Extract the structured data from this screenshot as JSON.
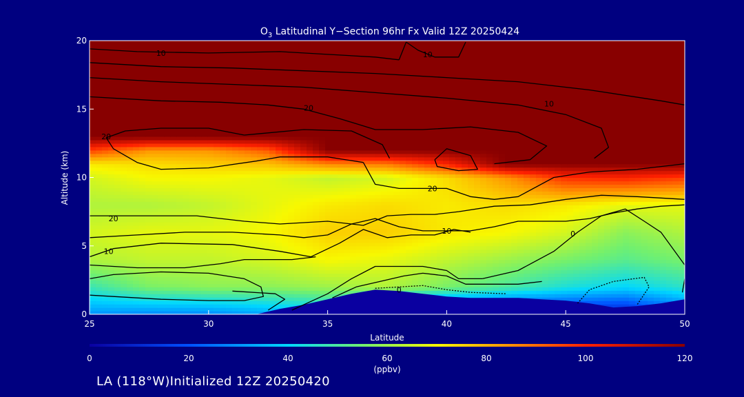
{
  "chart_data": {
    "type": "heatmap",
    "title_prefix": "O",
    "title_sub": "3",
    "title_rest": " Latitudinal Y−Section 96hr  Fx Valid 12Z 20250424",
    "xlabel": "Latitude",
    "ylabel": "Altitude (km)",
    "xlim": [
      25,
      50
    ],
    "ylim": [
      0,
      20
    ],
    "xticks": [
      25,
      30,
      35,
      40,
      45,
      50
    ],
    "yticks": [
      0,
      5,
      10,
      15,
      20
    ],
    "colorbar": {
      "label": "(ppbv)",
      "min": 0,
      "max": 120,
      "ticks": [
        0,
        20,
        40,
        60,
        80,
        100,
        120
      ],
      "stops": [
        {
          "v": 0,
          "color": "#0a00a0"
        },
        {
          "v": 20,
          "color": "#0050ff"
        },
        {
          "v": 40,
          "color": "#00d8ff"
        },
        {
          "v": 55,
          "color": "#70f070"
        },
        {
          "v": 70,
          "color": "#f8f800"
        },
        {
          "v": 85,
          "color": "#ff9000"
        },
        {
          "v": 100,
          "color": "#ff2000"
        },
        {
          "v": 120,
          "color": "#880000"
        }
      ]
    },
    "x": [
      25,
      27.5,
      30,
      32.5,
      35,
      37.5,
      40,
      42.5,
      45,
      47.5,
      50
    ],
    "y": [
      0,
      2,
      4,
      6,
      8,
      10,
      11,
      12,
      13,
      14,
      16,
      18,
      20
    ],
    "values": [
      [
        30,
        28,
        28,
        32,
        36,
        6,
        6,
        6,
        6,
        6,
        20
      ],
      [
        48,
        56,
        58,
        58,
        60,
        62,
        56,
        50,
        44,
        40,
        46
      ],
      [
        62,
        64,
        64,
        66,
        70,
        68,
        64,
        60,
        56,
        52,
        56
      ],
      [
        66,
        68,
        68,
        70,
        76,
        76,
        72,
        70,
        66,
        58,
        62
      ],
      [
        62,
        62,
        64,
        68,
        72,
        74,
        72,
        74,
        72,
        68,
        68
      ],
      [
        66,
        70,
        70,
        68,
        64,
        66,
        74,
        84,
        98,
        100,
        96
      ],
      [
        72,
        74,
        76,
        78,
        86,
        88,
        100,
        120,
        120,
        120,
        120
      ],
      [
        96,
        84,
        84,
        92,
        120,
        120,
        120,
        120,
        120,
        120,
        120
      ],
      [
        120,
        120,
        120,
        120,
        120,
        120,
        120,
        120,
        120,
        120,
        120
      ],
      [
        120,
        120,
        120,
        120,
        120,
        120,
        120,
        120,
        120,
        120,
        120
      ],
      [
        120,
        120,
        120,
        120,
        120,
        120,
        120,
        120,
        120,
        120,
        120
      ],
      [
        120,
        120,
        120,
        120,
        120,
        120,
        120,
        120,
        120,
        120,
        120
      ],
      [
        120,
        120,
        120,
        120,
        120,
        120,
        120,
        120,
        120,
        120,
        120
      ]
    ],
    "terrain": [
      [
        25,
        0
      ],
      [
        32,
        0
      ],
      [
        33,
        0.4
      ],
      [
        34,
        0.7
      ],
      [
        35,
        1.1
      ],
      [
        36,
        1.5
      ],
      [
        37,
        1.8
      ],
      [
        38,
        1.7
      ],
      [
        39,
        1.5
      ],
      [
        40,
        1.3
      ],
      [
        41,
        1.2
      ],
      [
        42,
        1.2
      ],
      [
        43,
        1.2
      ],
      [
        44,
        1.1
      ],
      [
        45,
        1.0
      ],
      [
        46,
        0.8
      ],
      [
        47,
        0.5
      ],
      [
        48,
        0.6
      ],
      [
        49,
        0.8
      ],
      [
        50,
        1.1
      ],
      [
        50,
        0
      ],
      [
        25,
        0
      ]
    ],
    "contours": [
      {
        "label": "10",
        "label_at": [
          28,
          19.1
        ],
        "points": [
          [
            25,
            19.4
          ],
          [
            27,
            19.2
          ],
          [
            30,
            19.1
          ],
          [
            33,
            19.2
          ],
          [
            35,
            19.0
          ],
          [
            37,
            18.8
          ],
          [
            38,
            18.6
          ]
        ]
      },
      {
        "label": "",
        "label_at": null,
        "points": [
          [
            38,
            18.6
          ],
          [
            38.3,
            19.9
          ]
        ]
      },
      {
        "label": "10",
        "label_at": [
          39.2,
          19.0
        ],
        "points": [
          [
            38.3,
            19.9
          ],
          [
            38.8,
            19.3
          ],
          [
            39.5,
            18.8
          ],
          [
            40.5,
            18.8
          ],
          [
            40.8,
            19.9
          ]
        ]
      },
      {
        "label": "",
        "label_at": null,
        "points": [
          [
            25,
            18.4
          ],
          [
            28,
            18.1
          ],
          [
            31,
            18.0
          ],
          [
            34,
            17.8
          ],
          [
            37,
            17.6
          ],
          [
            40,
            17.3
          ],
          [
            43,
            17.0
          ],
          [
            46,
            16.4
          ],
          [
            49,
            15.6
          ],
          [
            50,
            15.3
          ]
        ]
      },
      {
        "label": "10",
        "label_at": [
          44.3,
          15.4
        ],
        "points": [
          [
            25,
            17.3
          ],
          [
            28,
            17.0
          ],
          [
            31,
            16.8
          ],
          [
            34,
            16.6
          ],
          [
            37,
            16.2
          ],
          [
            40,
            15.8
          ],
          [
            43,
            15.3
          ],
          [
            45,
            14.6
          ],
          [
            46.5,
            13.6
          ],
          [
            46.8,
            12.2
          ],
          [
            46.2,
            11.4
          ]
        ]
      },
      {
        "label": "20",
        "label_at": [
          34.2,
          15.1
        ],
        "points": [
          [
            25,
            15.9
          ],
          [
            28,
            15.6
          ],
          [
            30.5,
            15.5
          ],
          [
            32.5,
            15.3
          ],
          [
            34,
            15.0
          ],
          [
            35.5,
            14.3
          ],
          [
            37,
            13.5
          ],
          [
            39,
            13.5
          ],
          [
            41,
            13.7
          ],
          [
            43,
            13.3
          ],
          [
            44.2,
            12.3
          ],
          [
            43.5,
            11.3
          ],
          [
            42,
            11.0
          ]
        ]
      },
      {
        "label": "20",
        "label_at": [
          25.7,
          13.0
        ],
        "points": [
          [
            31.5,
            13.1
          ],
          [
            30,
            13.6
          ],
          [
            28,
            13.6
          ],
          [
            26.5,
            13.4
          ],
          [
            25.7,
            12.9
          ],
          [
            26,
            12.1
          ],
          [
            27,
            11.1
          ],
          [
            28,
            10.6
          ],
          [
            30,
            10.7
          ],
          [
            32,
            11.2
          ],
          [
            33,
            11.5
          ],
          [
            35,
            11.5
          ],
          [
            36.5,
            11.1
          ]
        ]
      },
      {
        "label": "",
        "label_at": null,
        "points": [
          [
            31.5,
            13.1
          ],
          [
            34,
            13.5
          ],
          [
            36,
            13.4
          ],
          [
            37.3,
            12.4
          ],
          [
            37.6,
            11.4
          ]
        ]
      },
      {
        "label": "",
        "label_at": null,
        "points": [
          [
            39.5,
            11.3
          ],
          [
            40,
            12.1
          ],
          [
            41,
            11.6
          ],
          [
            41.3,
            10.6
          ],
          [
            40.5,
            10.5
          ],
          [
            39.6,
            10.8
          ],
          [
            39.5,
            11.3
          ]
        ]
      },
      {
        "label": "20",
        "label_at": [
          39.4,
          9.2
        ],
        "points": [
          [
            36.5,
            11.1
          ],
          [
            37,
            9.5
          ],
          [
            38,
            9.2
          ],
          [
            39,
            9.2
          ],
          [
            40,
            9.2
          ],
          [
            41,
            8.6
          ],
          [
            42,
            8.4
          ],
          [
            43,
            8.6
          ],
          [
            44.5,
            10.0
          ],
          [
            46,
            10.4
          ],
          [
            48,
            10.6
          ],
          [
            50,
            11.0
          ]
        ]
      },
      {
        "label": "20",
        "label_at": [
          26.0,
          7.0
        ],
        "points": [
          [
            25,
            7.2
          ],
          [
            27,
            7.2
          ],
          [
            29.5,
            7.2
          ],
          [
            31.5,
            6.8
          ],
          [
            33,
            6.6
          ],
          [
            35,
            6.8
          ],
          [
            36.5,
            6.5
          ],
          [
            37.5,
            7.2
          ],
          [
            38.5,
            7.3
          ],
          [
            39.5,
            7.3
          ],
          [
            40.5,
            7.5
          ],
          [
            42,
            7.9
          ],
          [
            43.5,
            8.0
          ],
          [
            45,
            8.4
          ],
          [
            46.5,
            8.7
          ],
          [
            48,
            8.6
          ],
          [
            50,
            8.4
          ]
        ]
      },
      {
        "label": "10",
        "label_at": [
          40.0,
          6.1
        ],
        "points": [
          [
            25,
            5.6
          ],
          [
            27,
            5.8
          ],
          [
            29,
            6.0
          ],
          [
            31,
            6.0
          ],
          [
            33,
            5.8
          ],
          [
            34,
            5.6
          ],
          [
            35,
            5.8
          ],
          [
            36,
            6.6
          ],
          [
            37,
            7.0
          ],
          [
            38,
            6.4
          ],
          [
            39,
            6.1
          ],
          [
            40,
            6.1
          ],
          [
            41,
            6.1
          ],
          [
            42,
            6.4
          ],
          [
            43,
            6.8
          ],
          [
            44,
            6.8
          ],
          [
            45,
            6.8
          ],
          [
            46,
            7.0
          ],
          [
            47,
            7.4
          ],
          [
            48,
            7.7
          ],
          [
            49,
            7.9
          ],
          [
            50,
            8.0
          ]
        ]
      },
      {
        "label": "10",
        "label_at": [
          25.8,
          4.6
        ],
        "points": [
          [
            25,
            4.2
          ],
          [
            26,
            4.8
          ],
          [
            28,
            5.2
          ],
          [
            31,
            5.1
          ],
          [
            33,
            4.6
          ],
          [
            34.3,
            4.2
          ],
          [
            35.5,
            5.2
          ],
          [
            36.5,
            6.2
          ],
          [
            37.5,
            5.6
          ],
          [
            38.5,
            5.8
          ],
          [
            39.5,
            5.8
          ],
          [
            40.3,
            6.2
          ],
          [
            41,
            6.0
          ]
        ]
      },
      {
        "label": "0",
        "label_at": [
          45.3,
          5.9
        ],
        "points": [
          [
            41.5,
            2.6
          ],
          [
            43,
            3.2
          ],
          [
            44.5,
            4.6
          ],
          [
            45.5,
            6.0
          ],
          [
            46.5,
            7.2
          ],
          [
            47.5,
            7.7
          ],
          [
            48.3,
            6.8
          ],
          [
            49,
            6.0
          ],
          [
            50,
            3.6
          ]
        ]
      },
      {
        "label": "",
        "label_at": null,
        "points": [
          [
            25,
            3.6
          ],
          [
            27,
            3.4
          ],
          [
            29,
            3.4
          ],
          [
            30.5,
            3.7
          ],
          [
            31.5,
            4.0
          ],
          [
            33.5,
            4.0
          ],
          [
            34.5,
            4.2
          ]
        ]
      },
      {
        "label": "",
        "label_at": null,
        "points": [
          [
            25,
            2.6
          ],
          [
            26,
            2.9
          ],
          [
            28,
            3.1
          ],
          [
            30,
            3.0
          ],
          [
            31.5,
            2.6
          ],
          [
            32.2,
            2.0
          ],
          [
            32.3,
            1.3
          ],
          [
            31.5,
            1.0
          ],
          [
            30,
            1.0
          ],
          [
            28,
            1.1
          ],
          [
            26,
            1.3
          ],
          [
            25,
            1.4
          ]
        ]
      },
      {
        "label": "",
        "label_at": null,
        "points": [
          [
            32.5,
            0.3
          ],
          [
            33.2,
            1.1
          ],
          [
            32.8,
            1.5
          ],
          [
            31,
            1.7
          ]
        ]
      },
      {
        "label": "",
        "label_at": null,
        "points": [
          [
            33.5,
            0.3
          ],
          [
            35,
            1.5
          ],
          [
            36,
            2.6
          ],
          [
            37,
            3.5
          ],
          [
            38,
            3.5
          ],
          [
            39,
            3.5
          ],
          [
            40,
            3.2
          ],
          [
            40.5,
            2.6
          ],
          [
            41.5,
            2.6
          ]
        ]
      },
      {
        "label": "",
        "label_at": null,
        "points": [
          [
            35.2,
            1.2
          ],
          [
            36.2,
            2.0
          ],
          [
            37.2,
            2.4
          ],
          [
            38.2,
            2.8
          ],
          [
            39,
            3.0
          ],
          [
            40,
            2.8
          ],
          [
            40.8,
            2.2
          ],
          [
            42,
            2.2
          ],
          [
            43,
            2.2
          ],
          [
            44,
            2.4
          ]
        ]
      },
      {
        "label": "0",
        "label_at": [
          38.0,
          1.8
        ],
        "dashed": true,
        "points": [
          [
            37,
            1.9
          ],
          [
            38,
            2.0
          ],
          [
            39,
            2.1
          ],
          [
            40,
            1.8
          ],
          [
            41,
            1.6
          ],
          [
            42.5,
            1.5
          ]
        ]
      },
      {
        "label": "",
        "label_at": null,
        "dashed": true,
        "points": [
          [
            45.5,
            0.8
          ],
          [
            46,
            1.8
          ],
          [
            47,
            2.4
          ],
          [
            48.3,
            2.7
          ],
          [
            48.5,
            2.0
          ],
          [
            48.0,
            0.7
          ]
        ]
      },
      {
        "label": "",
        "label_at": null,
        "points": [
          [
            49.9,
            1.6
          ],
          [
            50,
            2.6
          ]
        ]
      }
    ]
  },
  "footer": {
    "text": "LA (118°W)Initialized 12Z 20250420"
  },
  "colors": {
    "background": "#000080",
    "axis": "#ffffff",
    "contour": "#000000"
  }
}
